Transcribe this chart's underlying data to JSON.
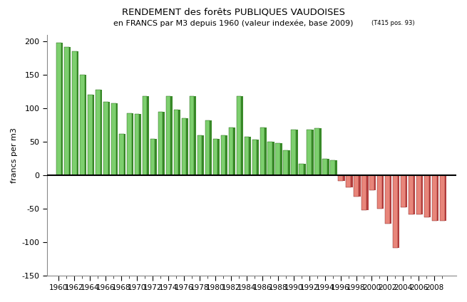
{
  "title_line1": "RENDEMENT des forêts PUBLIQUES VAUDOISES",
  "title_line2": "en FRANCS par M3 depuis 1960 (valeur indexée, base 2009)",
  "title_suffix": "(T415 pos. 93)",
  "ylabel": "francs per m3",
  "ylim": [
    -150,
    210
  ],
  "yticks": [
    -150,
    -100,
    -50,
    0,
    50,
    100,
    150,
    200
  ],
  "years": [
    1960,
    1961,
    1962,
    1963,
    1964,
    1965,
    1966,
    1967,
    1968,
    1969,
    1970,
    1971,
    1972,
    1973,
    1974,
    1975,
    1976,
    1977,
    1978,
    1979,
    1980,
    1981,
    1982,
    1983,
    1984,
    1985,
    1986,
    1987,
    1988,
    1989,
    1990,
    1991,
    1992,
    1993,
    1994,
    1995,
    1996,
    1997,
    1998,
    1999,
    2000,
    2001,
    2002,
    2003,
    2004,
    2005,
    2006,
    2007,
    2008,
    2009
  ],
  "values": [
    198,
    192,
    185,
    150,
    120,
    128,
    110,
    108,
    62,
    93,
    92,
    118,
    55,
    95,
    118,
    98,
    85,
    118,
    60,
    82,
    55,
    60,
    72,
    118,
    58,
    53,
    72,
    50,
    48,
    38,
    68,
    17,
    68,
    70,
    25,
    23,
    -8,
    -18,
    -32,
    -52,
    -22,
    -50,
    -72,
    -108,
    -48,
    -58,
    -58,
    -62,
    -68,
    -68
  ],
  "bar_color_pos_light": "#7dcf6e",
  "bar_color_pos_dark": "#3a8c2a",
  "bar_color_neg_light": "#e8857a",
  "bar_color_neg_dark": "#b84040",
  "bar_top_pos": "#5ab54a",
  "bar_top_neg": "#cc6060",
  "background_color": "#ffffff",
  "xlim": [
    1958.5,
    2010.8
  ]
}
